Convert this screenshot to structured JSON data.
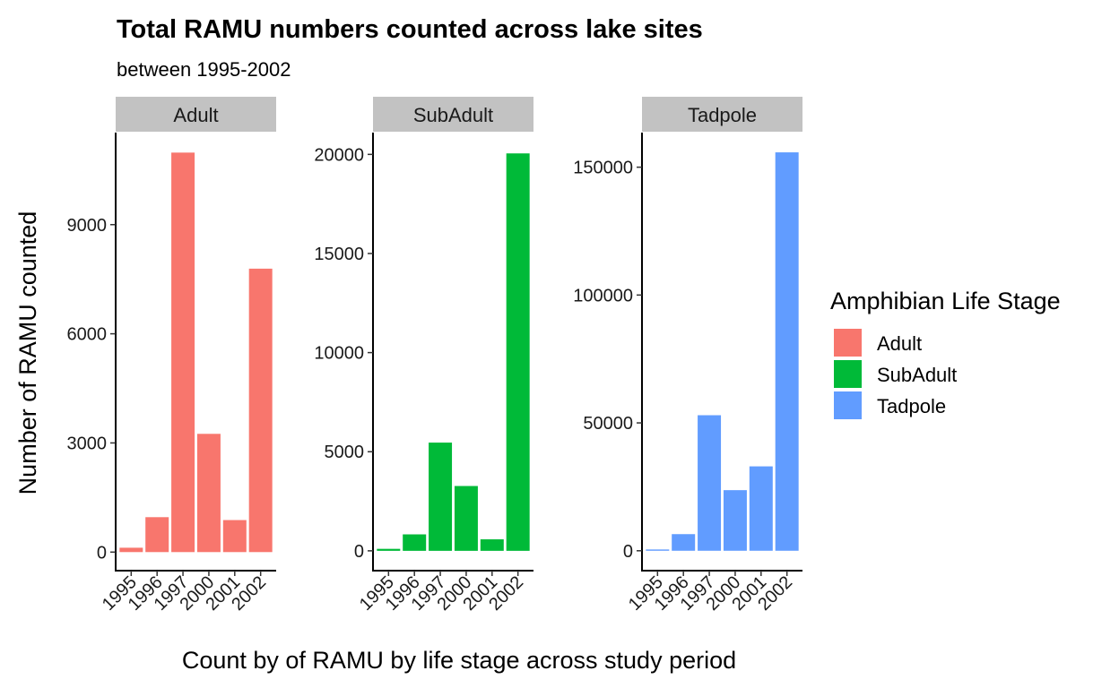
{
  "chart_data": {
    "type": "bar",
    "title": "Total RAMU numbers counted across lake sites",
    "subtitle": "between 1995-2002",
    "xlabel": "Count by of RAMU by life stage across study period",
    "ylabel": "Number of RAMU counted",
    "categories": [
      "1995",
      "1996",
      "1997",
      "2000",
      "2001",
      "2002"
    ],
    "facet_by": "Amphibian Life Stage",
    "legend": {
      "title": "Amphibian Life Stage",
      "position": "right"
    },
    "grid": false,
    "panels": [
      {
        "name": "Adult",
        "color": "#F8766D",
        "values": [
          120,
          960,
          10980,
          3250,
          880,
          7790
        ],
        "ylim": [
          -510,
          11530
        ],
        "yticks": [
          0,
          3000,
          6000,
          9000
        ],
        "ytick_labels": [
          "0",
          "3000",
          "6000",
          "9000"
        ]
      },
      {
        "name": "SubAdult",
        "color": "#00BA38",
        "values": [
          100,
          830,
          5460,
          3270,
          580,
          20050
        ],
        "ylim": [
          -1000,
          21100
        ],
        "yticks": [
          0,
          5000,
          10000,
          15000,
          20000
        ],
        "ytick_labels": [
          "0",
          "5000",
          "10000",
          "15000",
          "20000"
        ]
      },
      {
        "name": "Tadpole",
        "color": "#619CFF",
        "values": [
          500,
          6500,
          53000,
          23700,
          33000,
          155800
        ],
        "ylim": [
          -7780,
          163530
        ],
        "yticks": [
          0,
          50000,
          100000,
          150000
        ],
        "ytick_labels": [
          "0",
          "50000",
          "100000",
          "150000"
        ]
      }
    ]
  }
}
